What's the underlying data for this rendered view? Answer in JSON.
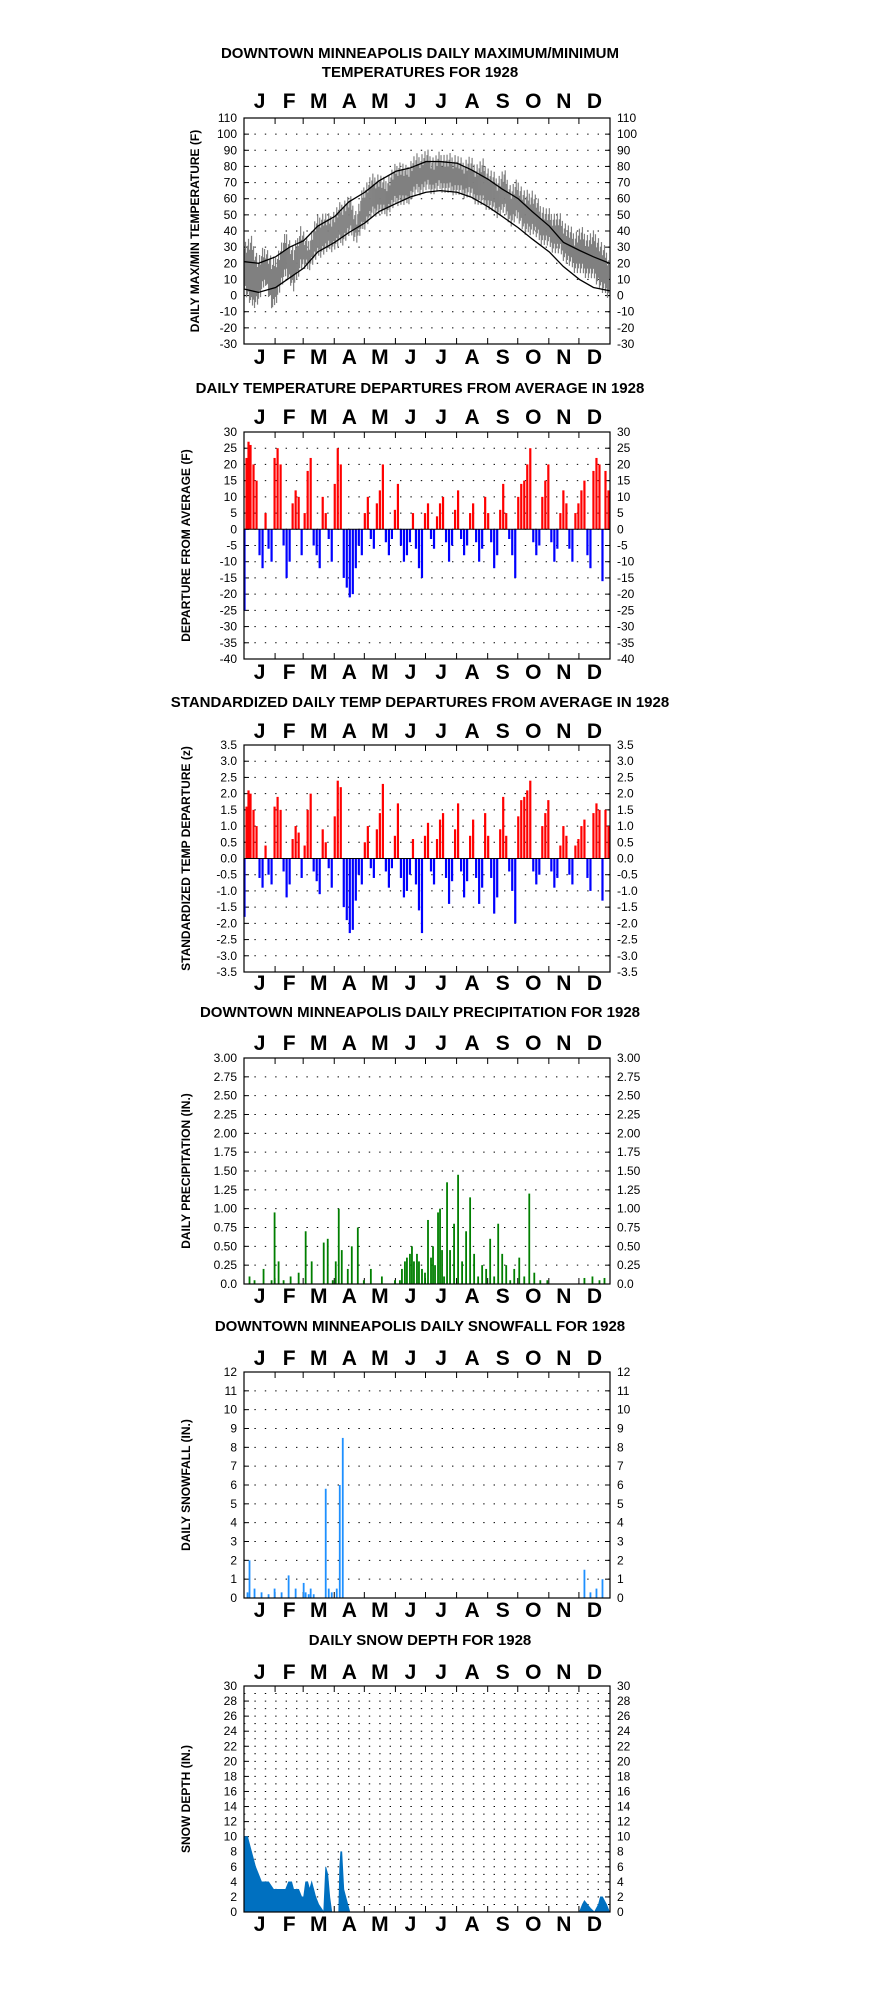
{
  "chart_data": [
    {
      "type": "line",
      "title": "DOWNTOWN MINNEAPOLIS  DAILY MAXIMUM/MINIMUM TEMPERATURES FOR 1928",
      "ylabel": "DAILY MAX/MIN TEMPERATURE (F)",
      "ylim": [
        -30,
        110
      ],
      "ystep": 10,
      "y_ticks": [
        "110",
        "100",
        "90",
        "80",
        "70",
        "60",
        "50",
        "40",
        "30",
        "20",
        "10",
        "0",
        "-10",
        "-20",
        "-30"
      ],
      "month_labels": [
        "J",
        "F",
        "M",
        "A",
        "M",
        "J",
        "J",
        "A",
        "S",
        "O",
        "N",
        "D"
      ],
      "grid": true,
      "colors": {
        "observed": "#808080",
        "normal": "#000000"
      },
      "series": [
        {
          "role": "observed-range",
          "x": [
            1,
            8,
            15,
            22,
            29,
            36,
            43,
            50,
            57,
            64,
            71,
            78,
            85,
            92,
            99,
            106,
            113,
            120,
            127,
            134,
            141,
            148,
            155,
            162,
            169,
            176,
            183,
            190,
            197,
            204,
            211,
            218,
            225,
            232,
            239,
            246,
            253,
            260,
            267,
            274,
            281,
            288,
            295,
            302,
            309,
            316,
            323,
            330,
            337,
            344,
            351,
            358,
            365
          ],
          "high": [
            30,
            32,
            20,
            28,
            18,
            26,
            36,
            25,
            40,
            30,
            42,
            48,
            46,
            50,
            55,
            58,
            48,
            65,
            70,
            72,
            68,
            74,
            80,
            76,
            82,
            84,
            86,
            82,
            85,
            83,
            84,
            80,
            82,
            78,
            80,
            74,
            70,
            74,
            64,
            68,
            60,
            62,
            54,
            50,
            48,
            46,
            40,
            36,
            38,
            34,
            36,
            28,
            22
          ],
          "low": [
            5,
            -5,
            -2,
            10,
            -8,
            5,
            15,
            5,
            20,
            18,
            24,
            28,
            30,
            32,
            35,
            40,
            36,
            44,
            50,
            54,
            52,
            56,
            60,
            58,
            64,
            66,
            68,
            66,
            68,
            66,
            66,
            64,
            64,
            60,
            58,
            56,
            52,
            54,
            46,
            50,
            40,
            42,
            36,
            34,
            30,
            28,
            22,
            18,
            16,
            14,
            12,
            4,
            2
          ]
        },
        {
          "name": "",
          "role": "normal-max",
          "x": [
            1,
            15,
            32,
            46,
            60,
            74,
            91,
            105,
            121,
            135,
            152,
            166,
            182,
            196,
            213,
            227,
            244,
            258,
            274,
            288,
            305,
            319,
            335,
            349,
            365
          ],
          "values": [
            21,
            20,
            24,
            30,
            34,
            43,
            49,
            58,
            64,
            71,
            77,
            79,
            83,
            83,
            82,
            78,
            72,
            66,
            60,
            52,
            43,
            33,
            28,
            24,
            20
          ]
        },
        {
          "name": "",
          "role": "normal-min",
          "x": [
            1,
            15,
            32,
            46,
            60,
            74,
            91,
            105,
            121,
            135,
            152,
            166,
            182,
            196,
            213,
            227,
            244,
            258,
            274,
            288,
            305,
            319,
            335,
            349,
            365
          ],
          "values": [
            4,
            2,
            5,
            11,
            17,
            27,
            33,
            39,
            45,
            52,
            57,
            61,
            64,
            65,
            64,
            61,
            55,
            49,
            42,
            35,
            27,
            18,
            10,
            5,
            3
          ]
        }
      ]
    },
    {
      "type": "bar",
      "title": "DAILY TEMPERATURE DEPARTURES FROM AVERAGE IN 1928",
      "ylabel": "DEPARTURE FROM AVERAGE (F)",
      "ylim": [
        -40,
        30
      ],
      "ystep": 5,
      "y_ticks": [
        "30",
        "25",
        "20",
        "15",
        "10",
        "5",
        "0",
        "-5",
        "-10",
        "-15",
        "-20",
        "-25",
        "-30",
        "-35",
        "-40"
      ],
      "month_labels": [
        "J",
        "F",
        "M",
        "A",
        "M",
        "J",
        "J",
        "A",
        "S",
        "O",
        "N",
        "D"
      ],
      "grid": true,
      "colors": {
        "positive": "#ff0000",
        "negative": "#0000ff"
      },
      "x": [
        1,
        3,
        5,
        7,
        10,
        13,
        16,
        19,
        22,
        25,
        28,
        31,
        34,
        37,
        40,
        43,
        46,
        49,
        52,
        55,
        58,
        61,
        64,
        67,
        70,
        73,
        76,
        79,
        82,
        85,
        88,
        91,
        94,
        97,
        100,
        103,
        106,
        109,
        112,
        115,
        118,
        121,
        124,
        127,
        130,
        133,
        136,
        139,
        142,
        145,
        148,
        151,
        154,
        157,
        160,
        163,
        166,
        169,
        172,
        175,
        178,
        181,
        184,
        187,
        190,
        193,
        196,
        199,
        202,
        205,
        208,
        211,
        214,
        217,
        220,
        223,
        226,
        229,
        232,
        235,
        238,
        241,
        244,
        247,
        250,
        253,
        256,
        259,
        262,
        265,
        268,
        271,
        274,
        277,
        280,
        283,
        286,
        289,
        292,
        295,
        298,
        301,
        304,
        307,
        310,
        313,
        316,
        319,
        322,
        325,
        328,
        331,
        334,
        337,
        340,
        343,
        346,
        349,
        352,
        355,
        358,
        361,
        364
      ],
      "values": [
        -25,
        22,
        27,
        26,
        20,
        15,
        -8,
        -12,
        5,
        -6,
        -10,
        22,
        25,
        20,
        -5,
        -15,
        -10,
        8,
        12,
        10,
        -8,
        5,
        18,
        22,
        -5,
        -8,
        -12,
        10,
        5,
        -3,
        -10,
        14,
        25,
        20,
        -15,
        -18,
        -21,
        -20,
        -12,
        -5,
        -8,
        5,
        10,
        -3,
        -6,
        8,
        12,
        20,
        -4,
        -8,
        -3,
        6,
        14,
        -5,
        -10,
        -8,
        -4,
        5,
        -6,
        -12,
        -15,
        5,
        8,
        -3,
        -6,
        4,
        8,
        10,
        -4,
        -10,
        -5,
        6,
        12,
        -3,
        -8,
        -5,
        5,
        8,
        -4,
        -10,
        -6,
        10,
        5,
        -4,
        -12,
        -8,
        6,
        14,
        5,
        -3,
        -8,
        -15,
        10,
        14,
        15,
        20,
        25,
        -4,
        -8,
        -5,
        10,
        15,
        20,
        -4,
        -10,
        -6,
        5,
        12,
        8,
        -6,
        -10,
        5,
        8,
        12,
        15,
        -8,
        -12,
        18,
        22,
        20,
        -16,
        18,
        12
      ]
    },
    {
      "type": "bar",
      "title": "STANDARDIZED DAILY TEMP DEPARTURES FROM AVERAGE IN 1928",
      "ylabel": "STANDARDIZED TEMP DEPARTURE (z)",
      "ylim": [
        -3.5,
        3.5
      ],
      "ystep": 0.5,
      "y_ticks_left": [
        "3.5",
        "3.0",
        "2.5",
        "2.0",
        "1.5",
        "1.0",
        "0.5",
        "0.0",
        "-0.5",
        "-1.0",
        "-1.5",
        "-2.0",
        "-2.5",
        "-3.0",
        "-3.5"
      ],
      "y_ticks_right": [
        "3.5",
        "3.0",
        "2.5",
        "2.0",
        "1.5",
        "1.0",
        "0.5",
        "0.0",
        "-0.5",
        "-1.0",
        "-1.5",
        "-2.0",
        "-2.5",
        "-3.0",
        "-3.5"
      ],
      "month_labels": [
        "J",
        "F",
        "M",
        "A",
        "M",
        "J",
        "J",
        "A",
        "S",
        "O",
        "N",
        "D"
      ],
      "grid": true,
      "colors": {
        "positive": "#ff0000",
        "negative": "#0000ff"
      },
      "x": [
        1,
        3,
        5,
        7,
        10,
        13,
        16,
        19,
        22,
        25,
        28,
        31,
        34,
        37,
        40,
        43,
        46,
        49,
        52,
        55,
        58,
        61,
        64,
        67,
        70,
        73,
        76,
        79,
        82,
        85,
        88,
        91,
        94,
        97,
        100,
        103,
        106,
        109,
        112,
        115,
        118,
        121,
        124,
        127,
        130,
        133,
        136,
        139,
        142,
        145,
        148,
        151,
        154,
        157,
        160,
        163,
        166,
        169,
        172,
        175,
        178,
        181,
        184,
        187,
        190,
        193,
        196,
        199,
        202,
        205,
        208,
        211,
        214,
        217,
        220,
        223,
        226,
        229,
        232,
        235,
        238,
        241,
        244,
        247,
        250,
        253,
        256,
        259,
        262,
        265,
        268,
        271,
        274,
        277,
        280,
        283,
        286,
        289,
        292,
        295,
        298,
        301,
        304,
        307,
        310,
        313,
        316,
        319,
        322,
        325,
        328,
        331,
        334,
        337,
        340,
        343,
        346,
        349,
        352,
        355,
        358,
        361,
        364
      ],
      "values": [
        -1.8,
        1.6,
        2.1,
        2.0,
        1.5,
        1.0,
        -0.6,
        -0.9,
        0.4,
        -0.5,
        -0.8,
        1.6,
        1.9,
        1.5,
        -0.4,
        -1.2,
        -0.8,
        0.6,
        1.0,
        0.8,
        -0.6,
        0.4,
        1.5,
        2.0,
        -0.4,
        -0.7,
        -1.1,
        0.9,
        0.5,
        -0.3,
        -0.9,
        1.3,
        2.4,
        2.2,
        -1.5,
        -1.9,
        -2.3,
        -2.2,
        -1.3,
        -0.5,
        -0.8,
        0.5,
        1.0,
        -0.3,
        -0.6,
        0.9,
        1.4,
        2.3,
        -0.4,
        -0.9,
        -0.3,
        0.7,
        1.7,
        -0.6,
        -1.2,
        -1.0,
        -0.5,
        0.6,
        -0.8,
        -1.6,
        -2.3,
        0.7,
        1.1,
        -0.4,
        -0.8,
        0.6,
        1.2,
        1.4,
        -0.6,
        -1.4,
        -0.7,
        0.9,
        1.7,
        -0.4,
        -1.2,
        -0.7,
        0.7,
        1.2,
        -0.6,
        -1.4,
        -0.9,
        1.4,
        0.7,
        -0.6,
        -1.7,
        -1.2,
        0.9,
        1.9,
        0.7,
        -0.4,
        -1.0,
        -2.0,
        1.3,
        1.8,
        1.9,
        2.1,
        2.4,
        -0.4,
        -0.8,
        -0.5,
        1.0,
        1.4,
        1.8,
        -0.4,
        -0.9,
        -0.6,
        0.4,
        1.0,
        0.7,
        -0.5,
        -0.8,
        0.4,
        0.6,
        1.0,
        1.2,
        -0.6,
        -1.0,
        1.4,
        1.7,
        1.5,
        -1.3,
        1.5,
        1.0
      ]
    },
    {
      "type": "bar",
      "title": "DOWNTOWN MINNEAPOLIS DAILY PRECIPITATION FOR 1928",
      "ylabel": "DAILY PRECIPITATION (IN.)",
      "ylim": [
        0,
        3.0
      ],
      "ystep": 0.25,
      "y_ticks": [
        "3.00",
        "2.75",
        "2.50",
        "2.25",
        "2.00",
        "1.75",
        "1.50",
        "1.25",
        "1.00",
        "0.75",
        "0.50",
        "0.25",
        "0.0"
      ],
      "month_labels": [
        "J",
        "F",
        "M",
        "A",
        "M",
        "J",
        "J",
        "A",
        "S",
        "O",
        "N",
        "D"
      ],
      "grid": true,
      "colors": {
        "bar": "#007f00"
      },
      "x": [
        6,
        11,
        20,
        28,
        31,
        35,
        40,
        47,
        55,
        62,
        68,
        80,
        84,
        89,
        92,
        95,
        98,
        104,
        108,
        114,
        120,
        127,
        138,
        151,
        156,
        158,
        161,
        163,
        166,
        168,
        170,
        173,
        175,
        178,
        181,
        184,
        187,
        189,
        191,
        194,
        196,
        198,
        200,
        203,
        206,
        210,
        214,
        218,
        222,
        226,
        230,
        234,
        238,
        242,
        246,
        250,
        254,
        258,
        262,
        266,
        270,
        275,
        280,
        285,
        290,
        296,
        303,
        340,
        348,
        355,
        360
      ],
      "values": [
        0.1,
        0.05,
        0.2,
        0.05,
        0.95,
        0.3,
        0.05,
        0.1,
        0.15,
        0.7,
        0.3,
        0.55,
        0.6,
        0.05,
        0.3,
        1.0,
        0.45,
        0.2,
        0.5,
        0.75,
        0.05,
        0.2,
        0.1,
        0.05,
        0.05,
        0.2,
        0.3,
        0.35,
        0.4,
        0.5,
        0.3,
        0.4,
        0.3,
        0.2,
        0.15,
        0.85,
        0.35,
        0.5,
        0.25,
        0.95,
        1.0,
        0.45,
        0.1,
        1.35,
        0.45,
        0.8,
        1.45,
        0.3,
        0.7,
        1.15,
        0.4,
        0.1,
        0.25,
        0.2,
        0.6,
        0.1,
        0.8,
        0.4,
        0.25,
        0.05,
        0.2,
        0.35,
        0.1,
        1.2,
        0.15,
        0.05,
        0.05,
        0.08,
        0.1,
        0.05,
        0.08
      ]
    },
    {
      "type": "bar",
      "title": "DOWNTOWN MINNEAPOLIS DAILY SNOWFALL FOR 1928",
      "ylabel": "DAILY SNOWFALL (IN.)",
      "ylim": [
        0,
        12
      ],
      "ystep": 1,
      "y_ticks": [
        "12",
        "11",
        "10",
        "9",
        "8",
        "7",
        "6",
        "5",
        "4",
        "3",
        "2",
        "1",
        "0"
      ],
      "month_labels": [
        "J",
        "F",
        "M",
        "A",
        "M",
        "J",
        "J",
        "A",
        "S",
        "O",
        "N",
        "D"
      ],
      "grid": true,
      "colors": {
        "bar": "#1e90ff"
      },
      "x": [
        4,
        6,
        11,
        18,
        25,
        31,
        38,
        45,
        52,
        60,
        62,
        65,
        67,
        70,
        82,
        85,
        88,
        93,
        96,
        99,
        340,
        346,
        352,
        358
      ],
      "values": [
        0.3,
        2.0,
        0.5,
        0.3,
        0.2,
        0.5,
        0.3,
        1.2,
        0.5,
        0.8,
        0.3,
        0.2,
        0.5,
        0.2,
        5.8,
        0.5,
        0.3,
        0.5,
        6.0,
        8.5,
        1.5,
        0.3,
        0.5,
        1.0
      ]
    },
    {
      "type": "area",
      "title": "DAILY SNOW DEPTH FOR 1928",
      "ylabel": "SNOW DEPTH (IN.)",
      "ylim": [
        0,
        30
      ],
      "ystep": 1,
      "y_ticks": [
        "30",
        "28",
        "26",
        "24",
        "22",
        "20",
        "18",
        "16",
        "14",
        "12",
        "10",
        "8",
        "6",
        "4",
        "2",
        "0"
      ],
      "month_labels": [
        "J",
        "F",
        "M",
        "A",
        "M",
        "J",
        "J",
        "A",
        "S",
        "O",
        "N",
        "D"
      ],
      "grid": true,
      "colors": {
        "fill": "#0070c0"
      },
      "x": [
        1,
        4,
        6,
        8,
        10,
        12,
        15,
        18,
        20,
        25,
        30,
        35,
        40,
        42,
        45,
        48,
        50,
        55,
        58,
        60,
        62,
        64,
        66,
        68,
        70,
        72,
        75,
        80,
        82,
        84,
        86,
        88,
        90,
        92,
        95,
        96,
        97,
        98,
        100,
        102,
        104,
        106,
        110,
        330,
        332,
        335,
        338,
        340,
        343,
        346,
        350,
        352,
        354,
        356,
        358,
        360,
        362,
        365
      ],
      "values": [
        10,
        10,
        9,
        8,
        7,
        6,
        5,
        4,
        4,
        4,
        3,
        3,
        3,
        3,
        4,
        4,
        3,
        3,
        2,
        2,
        4,
        4,
        3,
        4,
        3,
        2,
        1,
        0,
        6,
        5,
        2,
        0,
        0,
        0,
        0,
        6,
        8,
        8,
        3,
        2,
        1,
        0,
        0,
        0,
        0,
        0,
        1,
        1.5,
        1,
        0.5,
        0,
        0.5,
        1,
        2,
        2,
        1.5,
        1,
        0
      ]
    }
  ]
}
